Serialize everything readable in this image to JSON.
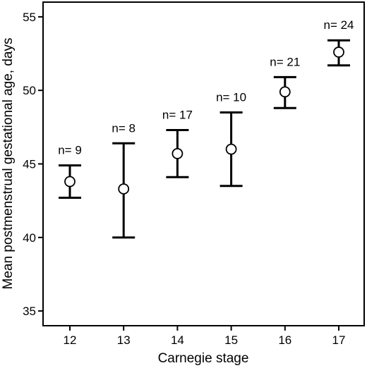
{
  "chart_data": {
    "type": "scatter",
    "xlabel": "Carnegie stage",
    "ylabel": "Mean postmenstrual gestational age, days",
    "categories": [
      "12",
      "13",
      "14",
      "15",
      "16",
      "17"
    ],
    "ylim": [
      34,
      56
    ],
    "yticks": [
      35,
      40,
      45,
      50,
      55
    ],
    "ytick_labels": [
      "35",
      "40",
      "45",
      "50",
      "55"
    ],
    "grid": false,
    "series": [
      {
        "mean": [
          43.8,
          43.3,
          45.7,
          46.0,
          49.9,
          52.6
        ],
        "lower": [
          42.7,
          40.0,
          44.1,
          43.5,
          48.8,
          51.7
        ],
        "upper": [
          44.9,
          46.4,
          47.3,
          48.5,
          50.9,
          53.4
        ],
        "n_labels": [
          "n= 9",
          "n= 8",
          "n= 17",
          "n= 10",
          "n= 21",
          "n= 24"
        ]
      }
    ]
  }
}
